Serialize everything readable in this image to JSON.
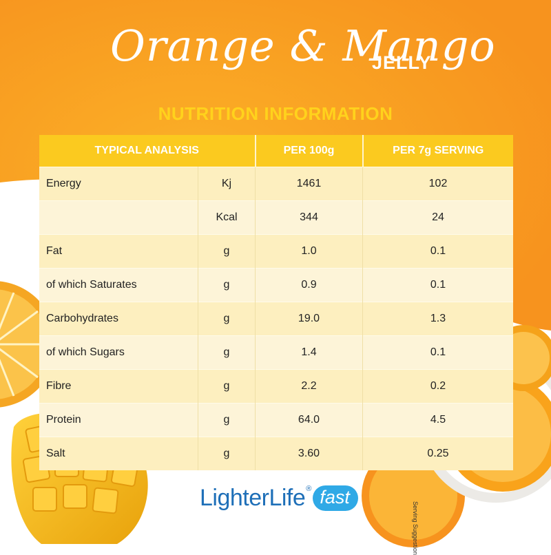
{
  "title": {
    "script": "Orange & Mango",
    "suffix": "JELLY"
  },
  "subtitle": "NUTRITION INFORMATION",
  "table": {
    "headers": [
      "TYPICAL ANALYSIS",
      "PER 100g",
      "PER 7g SERVING"
    ],
    "rows": [
      {
        "nutrient": "Energy",
        "unit": "Kj",
        "per100": "1461",
        "perServing": "102"
      },
      {
        "nutrient": "",
        "unit": "Kcal",
        "per100": "344",
        "perServing": "24"
      },
      {
        "nutrient": "Fat",
        "unit": "g",
        "per100": "1.0",
        "perServing": "0.1"
      },
      {
        "nutrient": "of which Saturates",
        "unit": "g",
        "per100": "0.9",
        "perServing": "0.1"
      },
      {
        "nutrient": "Carbohydrates",
        "unit": "g",
        "per100": "19.0",
        "perServing": "1.3"
      },
      {
        "nutrient": "of which Sugars",
        "unit": "g",
        "per100": "1.4",
        "perServing": "0.1"
      },
      {
        "nutrient": "Fibre",
        "unit": "g",
        "per100": "2.2",
        "perServing": "0.2"
      },
      {
        "nutrient": "Protein",
        "unit": "g",
        "per100": "64.0",
        "perServing": "4.5"
      },
      {
        "nutrient": "Salt",
        "unit": "g",
        "per100": "3.60",
        "perServing": "0.25"
      }
    ]
  },
  "logo": {
    "main": "LighterLife",
    "registered": "®",
    "fast": "fast"
  },
  "serving_note": "Serving Suggestion",
  "colors": {
    "background_orange": "#f7931e",
    "header_yellow": "#fbca1f",
    "subtitle_yellow": "#ffd21c",
    "brand_blue": "#1e6fb8",
    "brand_light_blue": "#2fa9e6"
  }
}
